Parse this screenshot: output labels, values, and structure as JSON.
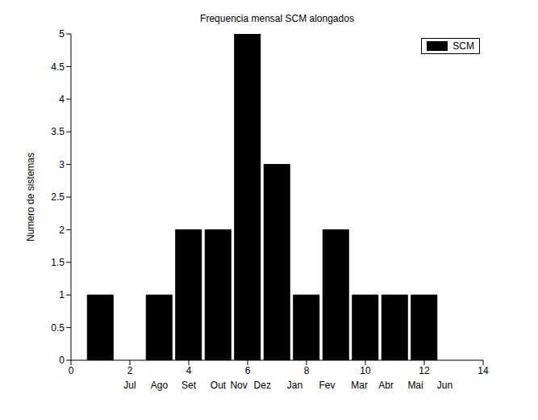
{
  "chart_data": {
    "type": "bar",
    "title": "Frequencia mensal SCM alongados",
    "ylabel": "Numero de sistemas",
    "x": [
      1,
      2,
      3,
      4,
      5,
      6,
      7,
      8,
      9,
      10,
      11,
      12
    ],
    "series": [
      {
        "name": "SCM",
        "color": "#000000",
        "values": [
          1,
          0,
          1,
          2,
          2,
          5,
          3,
          1,
          2,
          1,
          1,
          1
        ]
      }
    ],
    "xlim": [
      0,
      14
    ],
    "xticks": [
      0,
      2,
      4,
      6,
      8,
      10,
      12,
      14
    ],
    "ylim": [
      0,
      5
    ],
    "yticks": [
      0,
      0.5,
      1,
      1.5,
      2,
      2.5,
      3,
      3.5,
      4,
      4.5,
      5
    ],
    "annotations": [
      {
        "text": "Jul",
        "x": 2
      },
      {
        "text": "Ago",
        "x": 3
      },
      {
        "text": "Set",
        "x": 4
      },
      {
        "text": "Out",
        "x": 5
      },
      {
        "text": "Nov",
        "x": 5.7
      },
      {
        "text": "Dez",
        "x": 6.5
      },
      {
        "text": "Jan",
        "x": 7.6
      },
      {
        "text": "Fev",
        "x": 8.7
      },
      {
        "text": "Mar",
        "x": 9.8
      },
      {
        "text": "Abr",
        "x": 10.7
      },
      {
        "text": "Mai",
        "x": 11.7
      },
      {
        "text": "Jun",
        "x": 12.7
      }
    ],
    "legend": "upper right",
    "grid": false
  }
}
